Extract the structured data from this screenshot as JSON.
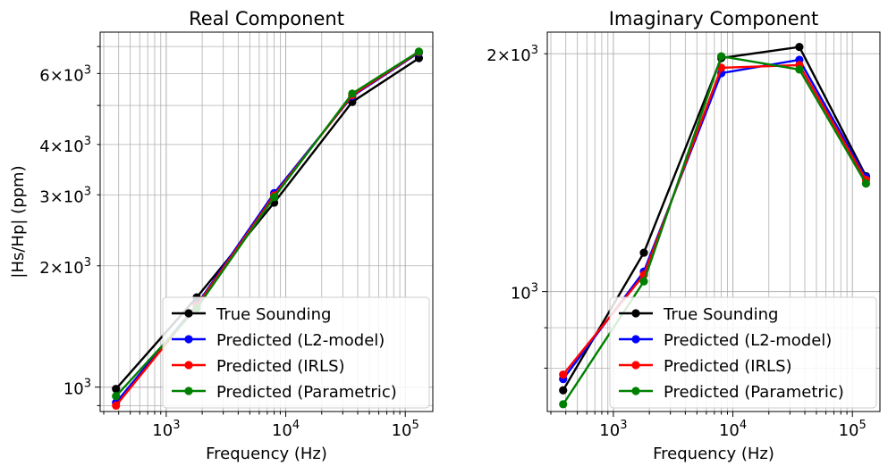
{
  "chart_data": [
    {
      "type": "line",
      "title": "Real Component",
      "xlabel": "Frequency (Hz)",
      "ylabel": "|Hs/Hp| (ppm)",
      "xscale": "log",
      "yscale": "log",
      "xlim": [
        280,
        170000
      ],
      "ylim": [
        870,
        7600
      ],
      "x_ticks": [
        {
          "value": 1000,
          "base": "10",
          "exp": "3"
        },
        {
          "value": 10000,
          "base": "10",
          "exp": "4"
        },
        {
          "value": 100000,
          "base": "10",
          "exp": "5"
        }
      ],
      "y_ticks": [
        {
          "value": 1000,
          "mant": "",
          "base": "10",
          "exp": "3"
        },
        {
          "value": 2000,
          "mant": "2×",
          "base": "10",
          "exp": "3"
        },
        {
          "value": 3000,
          "mant": "3×",
          "base": "10",
          "exp": "3"
        },
        {
          "value": 4000,
          "mant": "4×",
          "base": "10",
          "exp": "3"
        },
        {
          "value": 6000,
          "mant": "6×",
          "base": "10",
          "exp": "3"
        }
      ],
      "grid": true,
      "legend_position": "lower-right",
      "x": [
        380,
        1800,
        8000,
        36000,
        130000
      ],
      "series": [
        {
          "name": "True Sounding",
          "color": "#000000",
          "values": [
            990,
            1670,
            2870,
            5100,
            6550
          ]
        },
        {
          "name": "Predicted (L2-model)",
          "color": "#0000ff",
          "values": [
            915,
            1600,
            3030,
            5270,
            6760
          ]
        },
        {
          "name": "Predicted (IRLS)",
          "color": "#ff0000",
          "values": [
            900,
            1590,
            2990,
            5300,
            6780
          ]
        },
        {
          "name": "Predicted (Parametric)",
          "color": "#008000",
          "values": [
            950,
            1570,
            2960,
            5350,
            6800
          ]
        }
      ]
    },
    {
      "type": "line",
      "title": "Imaginary Component",
      "xlabel": "Frequency (Hz)",
      "ylabel": "",
      "xscale": "log",
      "yscale": "log",
      "xlim": [
        280,
        170000
      ],
      "ylim": [
        705,
        2130
      ],
      "x_ticks": [
        {
          "value": 1000,
          "base": "10",
          "exp": "3"
        },
        {
          "value": 10000,
          "base": "10",
          "exp": "4"
        },
        {
          "value": 100000,
          "base": "10",
          "exp": "5"
        }
      ],
      "y_ticks": [
        {
          "value": 1000,
          "mant": "",
          "base": "10",
          "exp": "3"
        },
        {
          "value": 2000,
          "mant": "2×",
          "base": "10",
          "exp": "3"
        }
      ],
      "grid": true,
      "legend_position": "lower-right",
      "x": [
        380,
        1800,
        8000,
        36000,
        130000
      ],
      "series": [
        {
          "name": "True Sounding",
          "color": "#000000",
          "values": [
            750,
            1120,
            1975,
            2040,
            1400
          ]
        },
        {
          "name": "Predicted (L2-model)",
          "color": "#0000ff",
          "values": [
            775,
            1060,
            1890,
            1965,
            1395
          ]
        },
        {
          "name": "Predicted (IRLS)",
          "color": "#ff0000",
          "values": [
            785,
            1050,
            1920,
            1935,
            1385
          ]
        },
        {
          "name": "Predicted (Parametric)",
          "color": "#008000",
          "values": [
            720,
            1030,
            1985,
            1910,
            1370
          ]
        }
      ]
    }
  ]
}
